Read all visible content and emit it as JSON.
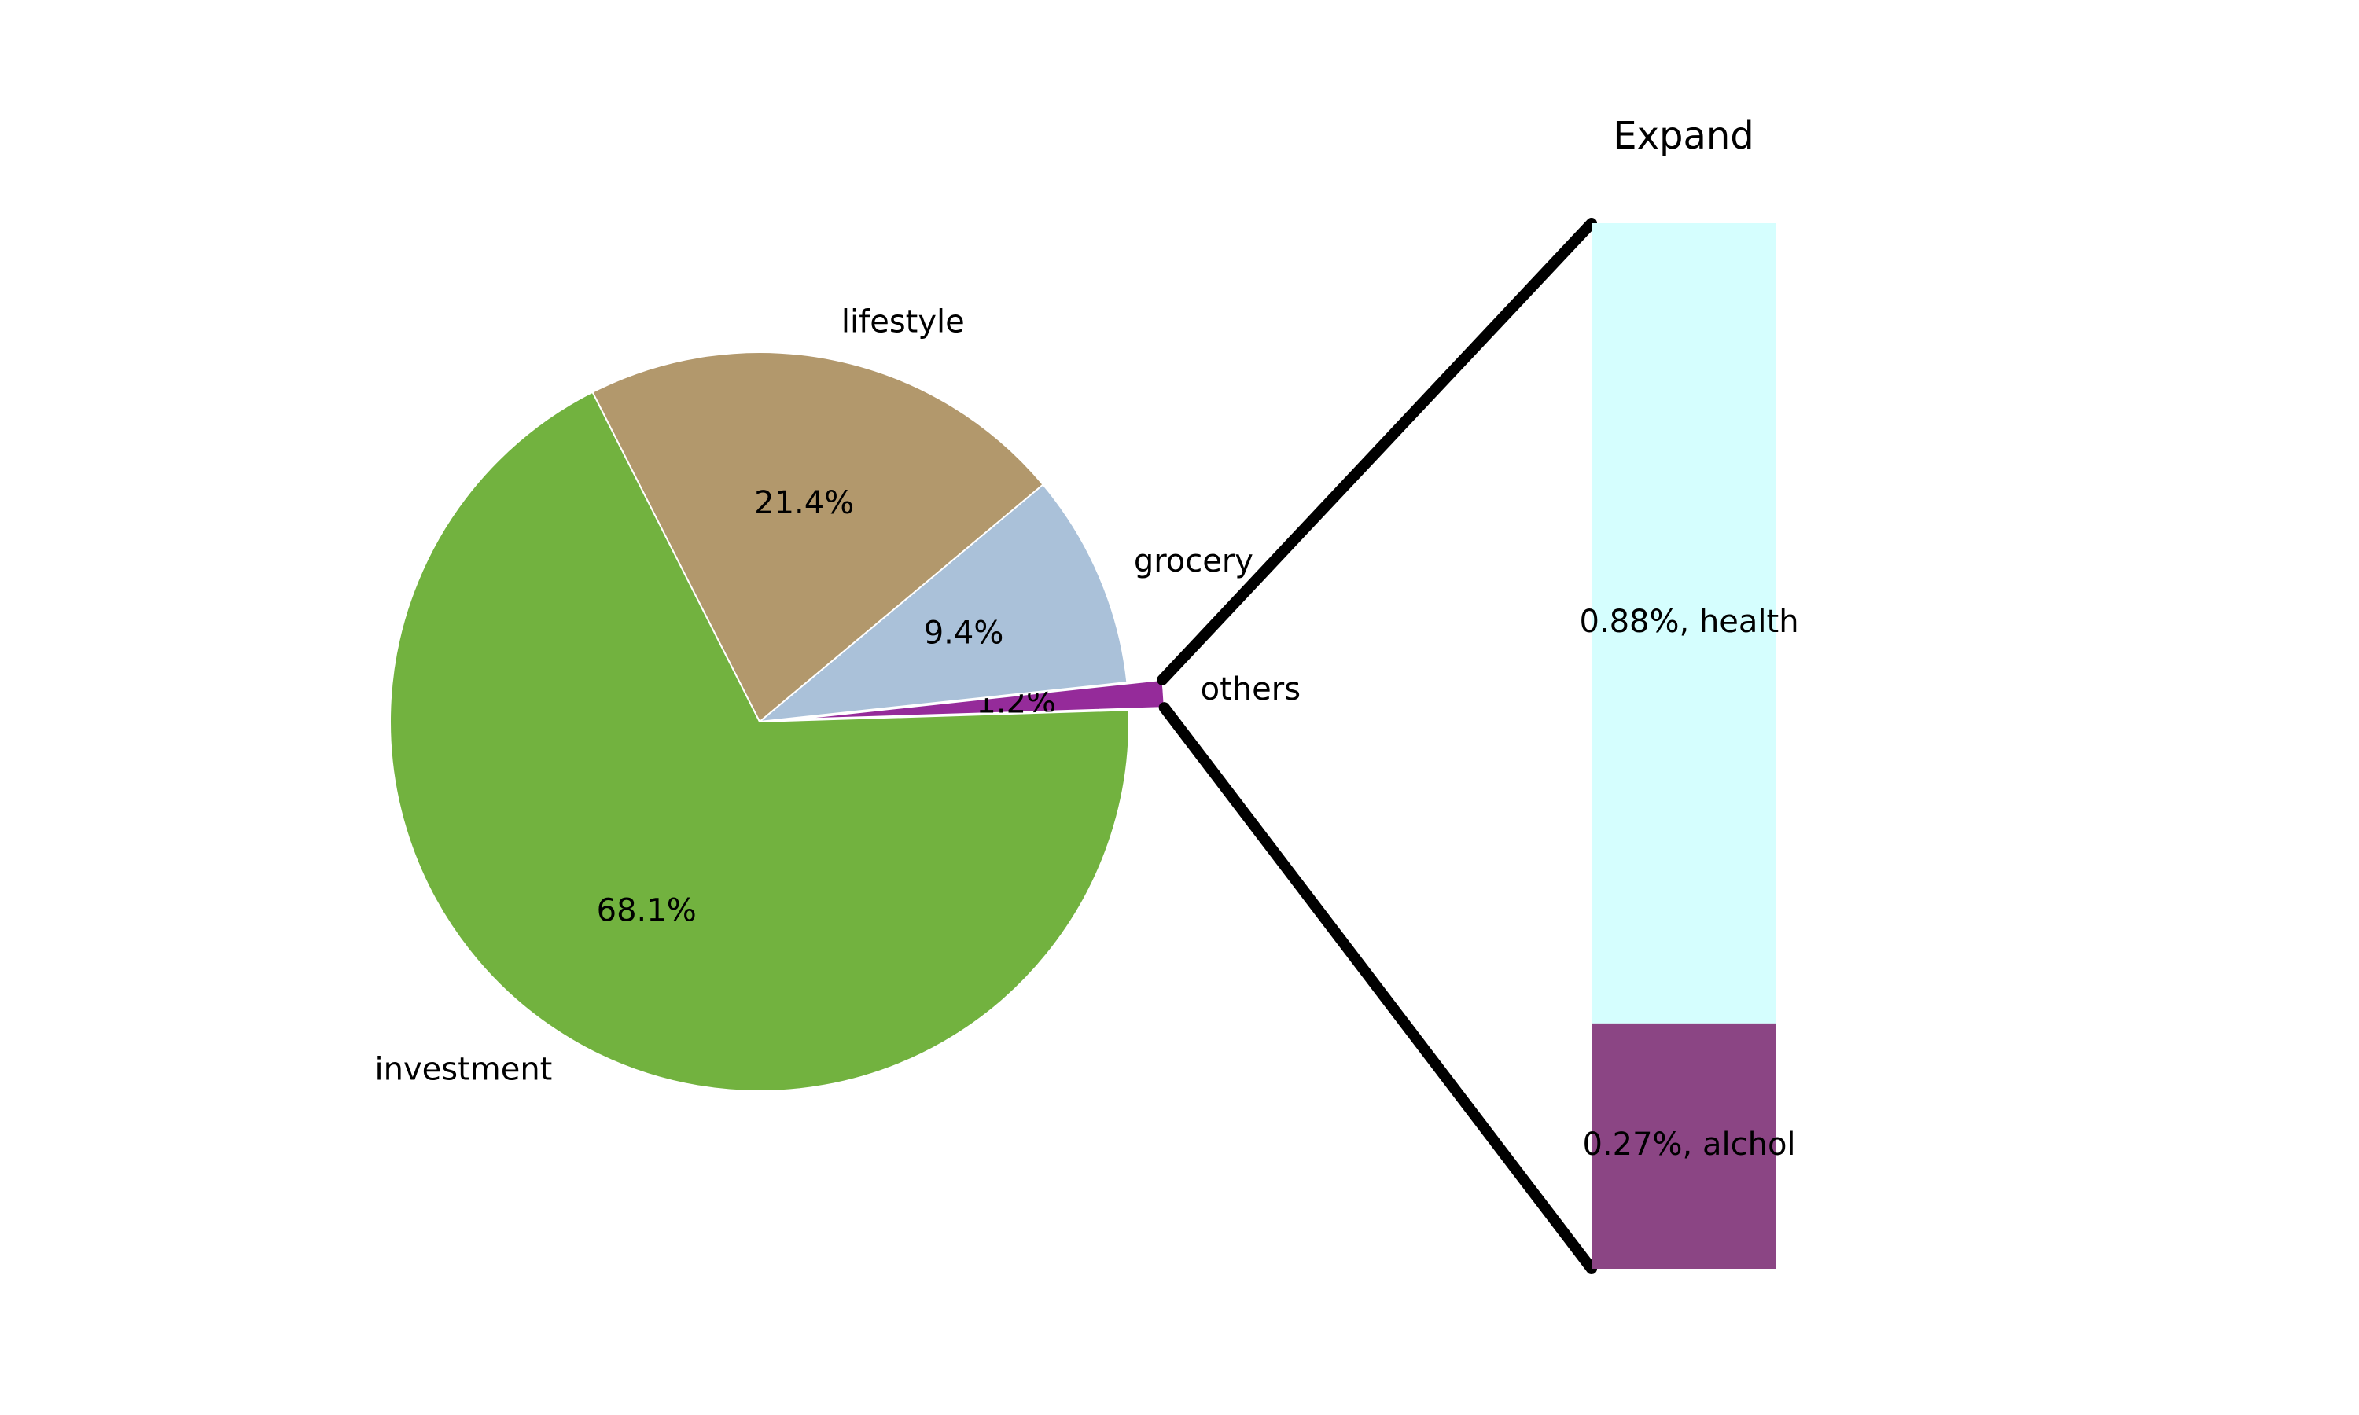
{
  "chart_data": {
    "type": "pie",
    "title": "",
    "slices": [
      {
        "label": "others",
        "value": 1.2,
        "pct_label": "1.2%",
        "color": "#952b9a",
        "exploded": true
      },
      {
        "label": "grocery",
        "value": 9.4,
        "pct_label": "9.4%",
        "color": "#aac1d9"
      },
      {
        "label": "lifestyle",
        "value": 21.4,
        "pct_label": "21.4%",
        "color": "#b2986c"
      },
      {
        "label": "investment",
        "value": 68.1,
        "pct_label": "68.1%",
        "color": "#72b23f"
      }
    ],
    "breakdown": {
      "title": "Expand",
      "parent": "others",
      "type": "stacked-bar",
      "segments": [
        {
          "label": "0.27%, alchol",
          "value": 0.27,
          "color": "#8b4584"
        },
        {
          "label": "0.88%, health",
          "value": 0.88,
          "color": "#d5fefe"
        }
      ]
    },
    "connector_color": "#000000"
  }
}
